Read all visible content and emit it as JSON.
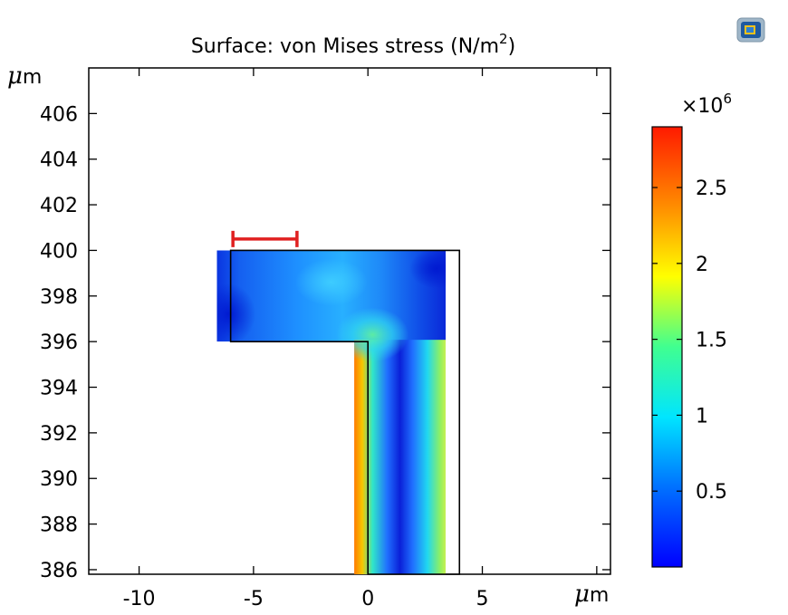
{
  "chart_data": {
    "type": "heatmap",
    "title": "Surface: von Mises stress (N/m²)",
    "title_main": "Surface: von Mises stress (N/m",
    "title_sup": "2",
    "title_end": ")",
    "xlabel_mu": "μ",
    "xlabel_m": "m",
    "ylabel_mu": "μ",
    "ylabel_m": "m",
    "xlim": [
      -12.2,
      10.6
    ],
    "ylim": [
      385.8,
      408
    ],
    "xticks": [
      -10,
      -5,
      0,
      5,
      10
    ],
    "xtick_labels": [
      "-10",
      "-5",
      "0",
      "5",
      ""
    ],
    "yticks": [
      386,
      388,
      390,
      392,
      394,
      396,
      398,
      400,
      402,
      404,
      406
    ],
    "ytick_labels": [
      "386",
      "388",
      "390",
      "392",
      "394",
      "396",
      "398",
      "400",
      "402",
      "404",
      "406"
    ],
    "colorbar": {
      "colormap": "rainbow",
      "min": 0,
      "max": 2.9,
      "multiplier": "×10",
      "multiplier_exp": "6",
      "ticks": [
        0.5,
        1,
        1.5,
        2,
        2.5
      ],
      "tick_labels": [
        "0.5",
        "1",
        "1.5",
        "2",
        "2.5"
      ]
    },
    "geometry": {
      "undeformed_outline": [
        [
          -6,
          400
        ],
        [
          4,
          400
        ],
        [
          4,
          385.8
        ],
        [
          0,
          385.8
        ],
        [
          0,
          396
        ],
        [
          -6,
          396
        ]
      ],
      "deformed_top_arm": [
        [
          -6.6,
          396
        ],
        [
          3.4,
          400
        ]
      ],
      "deformed_vertical_leg": [
        [
          -0.6,
          385.8
        ],
        [
          3.4,
          396
        ]
      ]
    },
    "stress_field_regions": [
      {
        "region": "left-arm-tip",
        "x": [
          -6.6,
          -4.5
        ],
        "y": [
          396,
          400
        ],
        "value": 0.1
      },
      {
        "region": "top-arm-middle",
        "x": [
          -4.5,
          -1
        ],
        "y": [
          396,
          400
        ],
        "value": 0.4
      },
      {
        "region": "inner-corner",
        "x": [
          -1,
          1
        ],
        "y": [
          395,
          398
        ],
        "value": 1.8
      },
      {
        "region": "inner-edge-of-leg",
        "x": [
          -0.6,
          0.3
        ],
        "y": [
          385.8,
          395.5
        ],
        "value": 2.9
      },
      {
        "region": "leg-center",
        "x": [
          1,
          2.5
        ],
        "y": [
          385.8,
          396
        ],
        "value": 0.1
      },
      {
        "region": "outer-edge-of-leg",
        "x": [
          2.8,
          3.4
        ],
        "y": [
          385.8,
          396
        ],
        "value": 1.7
      },
      {
        "region": "top-right-corner",
        "x": [
          2,
          3.4
        ],
        "y": [
          397,
          400
        ],
        "value": 0.05
      }
    ],
    "grid": false
  },
  "annotation": {
    "type": "red-interval-marker",
    "x_start": -5.9,
    "x_end": -3.1,
    "y": 400.5,
    "color": "#e02020"
  },
  "colors": {
    "axis": "#000000",
    "marker": "#e02020",
    "background": "#ffffff"
  },
  "icons": {
    "top_right": "comsol-3d-view-icon"
  }
}
